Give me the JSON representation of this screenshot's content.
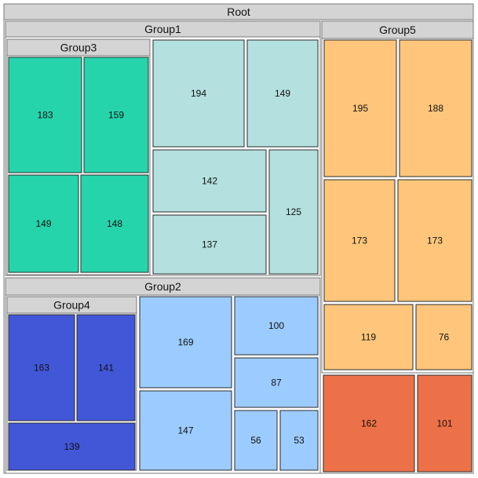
{
  "chart_data": {
    "type": "treemap",
    "root_label": "Root",
    "colors": {
      "group3": "#26d4ac",
      "group1": "#b5e0e0",
      "group4": "#4257d8",
      "group2": "#9cccff",
      "group5": "#ffc67b",
      "root": "#ed7148"
    },
    "groups": [
      {
        "key": "group1",
        "label": "Group1"
      },
      {
        "key": "group2",
        "label": "Group2"
      },
      {
        "key": "group3",
        "label": "Group3"
      },
      {
        "key": "group4",
        "label": "Group4"
      },
      {
        "key": "group5",
        "label": "Group5"
      }
    ],
    "leaves": [
      {
        "label": "183",
        "value": 183,
        "group": "group3"
      },
      {
        "label": "159",
        "value": 159,
        "group": "group3"
      },
      {
        "label": "149",
        "value": 149,
        "group": "group3"
      },
      {
        "label": "148",
        "value": 148,
        "group": "group3"
      },
      {
        "label": "194",
        "value": 194,
        "group": "group1"
      },
      {
        "label": "149",
        "value": 149,
        "group": "group1"
      },
      {
        "label": "142",
        "value": 142,
        "group": "group1"
      },
      {
        "label": "137",
        "value": 137,
        "group": "group1"
      },
      {
        "label": "125",
        "value": 125,
        "group": "group1"
      },
      {
        "label": "163",
        "value": 163,
        "group": "group4"
      },
      {
        "label": "141",
        "value": 141,
        "group": "group4"
      },
      {
        "label": "139",
        "value": 139,
        "group": "group4"
      },
      {
        "label": "169",
        "value": 169,
        "group": "group2"
      },
      {
        "label": "147",
        "value": 147,
        "group": "group2"
      },
      {
        "label": "100",
        "value": 100,
        "group": "group2"
      },
      {
        "label": "87",
        "value": 87,
        "group": "group2"
      },
      {
        "label": "56",
        "value": 56,
        "group": "group2"
      },
      {
        "label": "53",
        "value": 53,
        "group": "group2"
      },
      {
        "label": "195",
        "value": 195,
        "group": "group5"
      },
      {
        "label": "188",
        "value": 188,
        "group": "group5"
      },
      {
        "label": "173",
        "value": 173,
        "group": "group5"
      },
      {
        "label": "173",
        "value": 173,
        "group": "group5"
      },
      {
        "label": "119",
        "value": 119,
        "group": "group5"
      },
      {
        "label": "76",
        "value": 76,
        "group": "group5"
      },
      {
        "label": "162",
        "value": 162,
        "group": "root"
      },
      {
        "label": "101",
        "value": 101,
        "group": "root"
      }
    ]
  }
}
